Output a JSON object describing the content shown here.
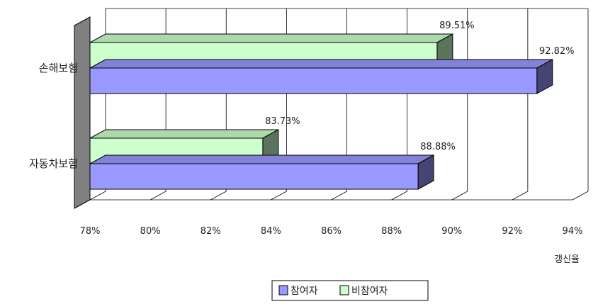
{
  "chart_data": {
    "type": "bar",
    "orientation": "horizontal",
    "style": "3d",
    "categories": [
      "손해보험",
      "자동차보험"
    ],
    "series": [
      {
        "name": "참여자",
        "values": [
          92.82,
          88.88
        ],
        "color": "#9999ff",
        "labels": [
          "92.82%",
          "88.88%"
        ]
      },
      {
        "name": "비참여자",
        "values": [
          89.51,
          83.73
        ],
        "color": "#ccffcc",
        "labels": [
          "89.51%",
          "83.73%"
        ]
      }
    ],
    "xlabel": "갱신율",
    "xlim": [
      78,
      94
    ],
    "xticks": [
      "78%",
      "80%",
      "82%",
      "84%",
      "86%",
      "88%",
      "90%",
      "92%",
      "94%"
    ],
    "grid": true,
    "legend": "bottom",
    "colors": {
      "wall_side": "#808080",
      "grid": "#000000"
    }
  }
}
